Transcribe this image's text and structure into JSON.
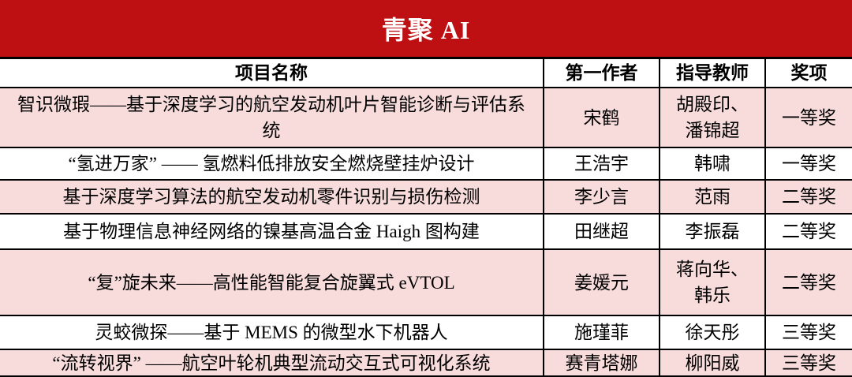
{
  "banner": {
    "title": "青聚 AI",
    "bg_color": "#be0f12",
    "text_color": "#ffffff"
  },
  "table": {
    "headers": [
      "项目名称",
      "第一作者",
      "指导教师",
      "奖项"
    ],
    "row_highlight_color": "#f8dcdc",
    "border_color": "#000000",
    "rows": [
      {
        "project": "智识微瑕——基于深度学习的航空发动机叶片智能诊断与评估系\n统",
        "author": "宋鹤",
        "advisor": "胡殿印、\n潘锦超",
        "award": "一等奖"
      },
      {
        "project": "“氢进万家” —— 氢燃料低排放安全燃烧壁挂炉设计",
        "author": "王浩宇",
        "advisor": "韩啸",
        "award": "一等奖"
      },
      {
        "project": "基于深度学习算法的航空发动机零件识别与损伤检测",
        "author": "李少言",
        "advisor": "范雨",
        "award": "二等奖"
      },
      {
        "project": "基于物理信息神经网络的镍基高温合金 Haigh 图构建",
        "author": "田继超",
        "advisor": "李振磊",
        "award": "二等奖"
      },
      {
        "project": "“复”旋未来——高性能智能复合旋翼式 eVTOL",
        "author": "姜媛元",
        "advisor": "蒋向华、\n韩乐",
        "award": "二等奖"
      },
      {
        "project": "灵蛟微探——基于 MEMS 的微型水下机器人",
        "author": "施瑾菲",
        "advisor": "徐天彤",
        "award": "三等奖"
      },
      {
        "project": "“流转视界” ——航空叶轮机典型流动交互式可视化系统",
        "author": "赛青塔娜",
        "advisor": "柳阳威",
        "award": "三等奖"
      }
    ]
  }
}
